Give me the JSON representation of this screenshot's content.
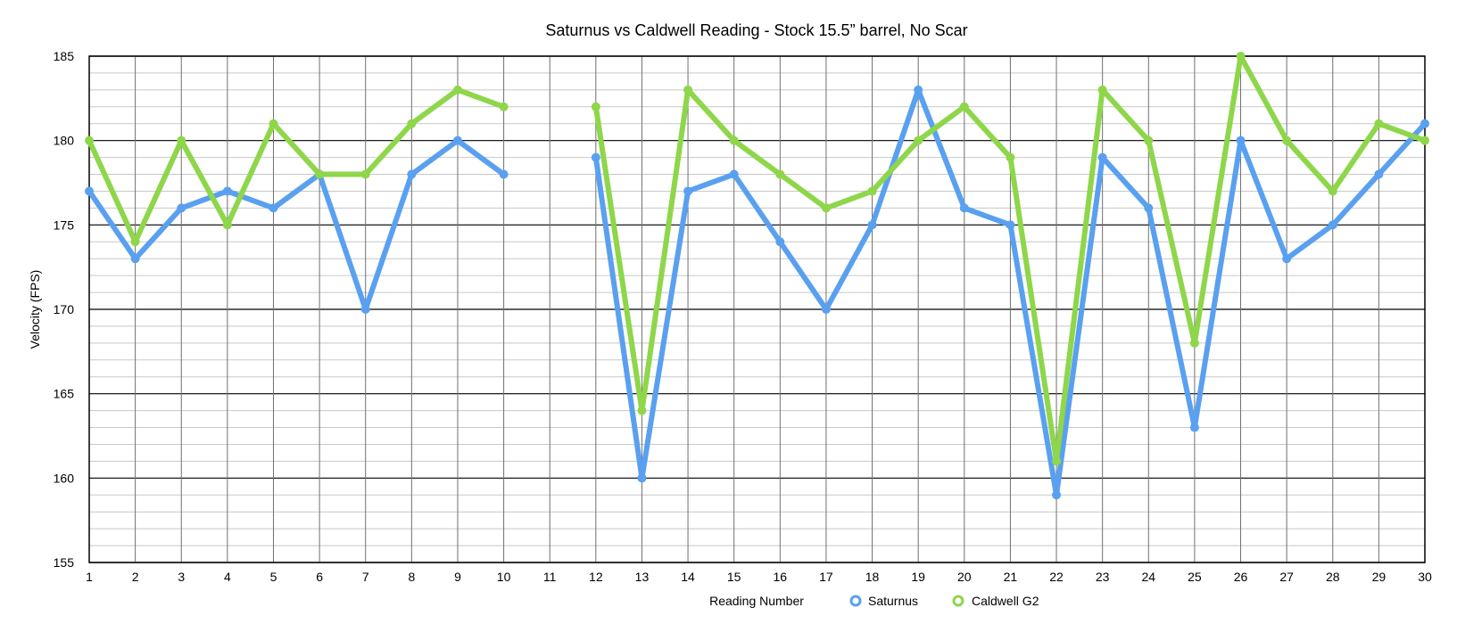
{
  "chart_data": {
    "type": "line",
    "title": "Saturnus vs Caldwell Reading - Stock 15.5” barrel, No Scar",
    "xlabel": "Reading Number",
    "ylabel": "Velocity (FPS)",
    "x": [
      1,
      2,
      3,
      4,
      5,
      6,
      7,
      8,
      9,
      10,
      11,
      12,
      13,
      14,
      15,
      16,
      17,
      18,
      19,
      20,
      21,
      22,
      23,
      24,
      25,
      26,
      27,
      28,
      29,
      30
    ],
    "ylim": [
      155,
      185
    ],
    "yticks": [
      155,
      160,
      165,
      170,
      175,
      180,
      185
    ],
    "grid": true,
    "legend_position": "bottom",
    "series": [
      {
        "name": "Saturnus",
        "color": "#5aa0f0",
        "values": [
          177,
          173,
          176,
          177,
          176,
          178,
          170,
          178,
          180,
          178,
          null,
          179,
          160,
          177,
          178,
          174,
          170,
          175,
          183,
          176,
          175,
          159,
          179,
          176,
          163,
          180,
          173,
          175,
          178,
          181
        ]
      },
      {
        "name": "Caldwell G2",
        "color": "#8ed64a",
        "values": [
          180,
          174,
          180,
          175,
          181,
          178,
          178,
          181,
          183,
          182,
          null,
          182,
          164,
          183,
          180,
          178,
          176,
          177,
          180,
          182,
          179,
          161,
          183,
          180,
          168,
          185,
          180,
          177,
          181,
          180
        ]
      }
    ]
  }
}
